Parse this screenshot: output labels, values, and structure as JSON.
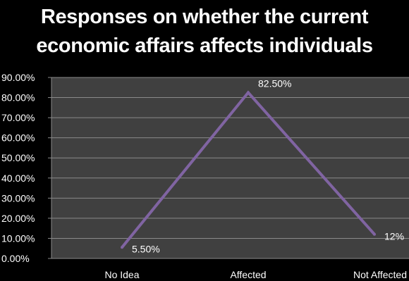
{
  "chart_data": {
    "type": "line",
    "title_lines": [
      "Responses on whether the current",
      "economic affairs affects individuals"
    ],
    "categories": [
      "No Idea",
      "Affected",
      "Not Affected"
    ],
    "series": [
      {
        "values": [
          5.5,
          82.5,
          12
        ],
        "data_labels": [
          "5.50%",
          "82.50%",
          "12%"
        ],
        "color": "#8064a2"
      }
    ],
    "ylim": [
      0,
      90
    ],
    "yticks": [
      0,
      10,
      20,
      30,
      40,
      50,
      60,
      70,
      80,
      90
    ],
    "ytick_labels": [
      "0.00%",
      "10.00%",
      "20.00%",
      "30.00%",
      "40.00%",
      "50.00%",
      "60.00%",
      "70.00%",
      "80.00%",
      "90.00%"
    ],
    "grid": true,
    "legend": "none",
    "colors": {
      "background": "#000000",
      "plot_area": "#404040",
      "gridline": "#8a8a8a",
      "text": "#ffffff"
    }
  }
}
